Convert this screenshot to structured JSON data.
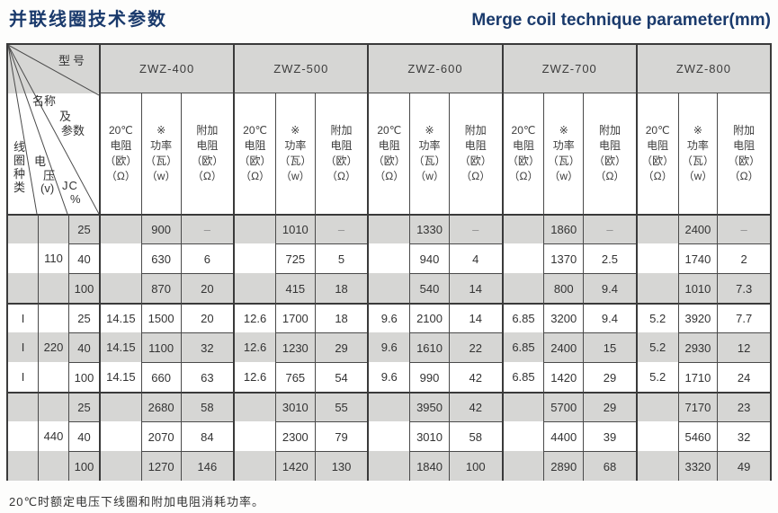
{
  "title": {
    "zh": "并联线圈技术参数",
    "en": "Merge coil technique parameter(mm)"
  },
  "header": {
    "corner": {
      "model": "型号",
      "name1": "名称",
      "name2": "及",
      "name3": "参数",
      "coil_type": "线圈种类",
      "volt1": "电",
      "volt2": "压",
      "volt3": "(v)",
      "jc": "JC",
      "percent": "%"
    },
    "models": [
      "ZWZ-400",
      "ZWZ-500",
      "ZWZ-600",
      "ZWZ-700",
      "ZWZ-800"
    ],
    "sub_columns": [
      [
        "20℃",
        "电阻",
        "（欧）",
        "（Ω）"
      ],
      [
        "※",
        "功率",
        "（瓦）",
        "（w）"
      ],
      [
        "附加",
        "电阻",
        "（欧）",
        "（Ω）"
      ]
    ]
  },
  "rows": [
    {
      "type": "",
      "voltage": "",
      "jc": "25",
      "cells": [
        "",
        "900",
        "–",
        "",
        "1010",
        "–",
        "",
        "1330",
        "–",
        "",
        "1860",
        "–",
        "",
        "2400",
        "–"
      ]
    },
    {
      "type": "",
      "voltage": "110",
      "jc": "40",
      "cells": [
        "",
        "630",
        "6",
        "",
        "725",
        "5",
        "",
        "940",
        "4",
        "",
        "1370",
        "2.5",
        "",
        "1740",
        "2"
      ]
    },
    {
      "type": "",
      "voltage": "",
      "jc": "100",
      "cells": [
        "",
        "870",
        "20",
        "",
        "415",
        "18",
        "",
        "540",
        "14",
        "",
        "800",
        "9.4",
        "",
        "1010",
        "7.3"
      ]
    },
    {
      "type": "I",
      "voltage": "",
      "jc": "25",
      "cells": [
        "14.15",
        "1500",
        "20",
        "12.6",
        "1700",
        "18",
        "9.6",
        "2100",
        "14",
        "6.85",
        "3200",
        "9.4",
        "5.2",
        "3920",
        "7.7"
      ]
    },
    {
      "type": "I",
      "voltage": "220",
      "jc": "40",
      "cells": [
        "14.15",
        "1100",
        "32",
        "12.6",
        "1230",
        "29",
        "9.6",
        "1610",
        "22",
        "6.85",
        "2400",
        "15",
        "5.2",
        "2930",
        "12"
      ]
    },
    {
      "type": "I",
      "voltage": "",
      "jc": "100",
      "cells": [
        "14.15",
        "660",
        "63",
        "12.6",
        "765",
        "54",
        "9.6",
        "990",
        "42",
        "6.85",
        "1420",
        "29",
        "5.2",
        "1710",
        "24"
      ]
    },
    {
      "type": "",
      "voltage": "",
      "jc": "25",
      "cells": [
        "",
        "2680",
        "58",
        "",
        "3010",
        "55",
        "",
        "3950",
        "42",
        "",
        "5700",
        "29",
        "",
        "7170",
        "23"
      ]
    },
    {
      "type": "",
      "voltage": "440",
      "jc": "40",
      "cells": [
        "",
        "2070",
        "84",
        "",
        "2300",
        "79",
        "",
        "3010",
        "58",
        "",
        "4400",
        "39",
        "",
        "5460",
        "32"
      ]
    },
    {
      "type": "",
      "voltage": "",
      "jc": "100",
      "cells": [
        "",
        "1270",
        "146",
        "",
        "1420",
        "130",
        "",
        "1840",
        "100",
        "",
        "2890",
        "68",
        "",
        "3320",
        "49"
      ]
    }
  ],
  "footnote": "20℃时额定电压下线圈和附加电阻消耗功率。",
  "colors": {
    "title": "#1a3a6c",
    "header_gray": "#d6d6d4",
    "stripe_gray": "#d6d6d4",
    "border_thin": "#4a4a4a",
    "border_thick": "#3a3a3a",
    "dash": "#8f8f8f"
  }
}
